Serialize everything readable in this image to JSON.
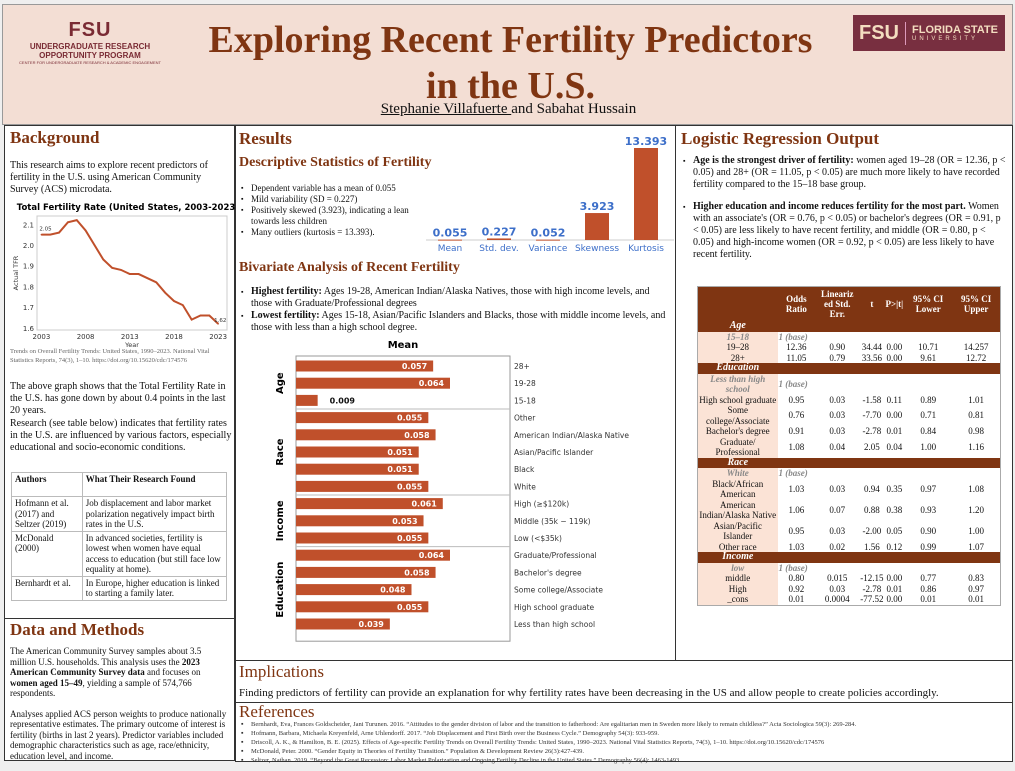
{
  "header": {
    "title_line1": "Exploring Recent Fertility Predictors",
    "title_line2": "in the U.S.",
    "author1": "Stephanie Villafuerte ",
    "author_rest": "and Sabahat Hussain",
    "logo_left": {
      "fsu": "FSU",
      "line1": "UNDERGRADUATE RESEARCH",
      "line2": "OPPORTUNITY PROGRAM",
      "line3": "CENTER FOR UNDERGRADUATE RESEARCH & ACADEMIC ENGAGEMENT"
    },
    "logo_right": {
      "fsu": "FSU",
      "name": "FLORIDA STATE",
      "sub": "UNIVERSITY"
    }
  },
  "colors": {
    "brand": "#7f3512",
    "bar": "#c0502b",
    "header_bg": "#f3ded4",
    "value_label": "#3d6fc9"
  },
  "background": {
    "heading": "Background",
    "intro": "This research aims to explore recent predictors of fertility in the U.S. using American Community Survey (ACS) microdata.",
    "source": "Trends on Overall Fertility Trends: United States, 1990–2023. National Vital Statistics Reports, 74(3), 1–10. https://doi.org/10.15620/cdc/174576",
    "para1": "The above graph shows that the Total Fertility Rate in the U.S. has gone down by about 0.4 points in the last 20 years.",
    "para2": "Research (see table below) indicates that fertility rates in the U.S.  are influenced by various factors, especially educational and socio-economic conditions.",
    "table": {
      "headers": [
        "Authors",
        "What Their Research Found"
      ],
      "rows": [
        [
          "Hofmann et al. (2017) and Seltzer (2019)",
          "Job displacement and labor market polarization negatively impact birth rates in the U.S."
        ],
        [
          "McDonald (2000)",
          "In advanced societies, fertility is lowest when women have equal access to education (but still face low equality at home)."
        ],
        [
          "Bernhardt et al.",
          "In Europe, higher education is linked to starting a family later."
        ]
      ]
    }
  },
  "methods": {
    "heading": "Data and Methods",
    "p1a": "The American Community Survey samples about 3.5 million U.S. households. This analysis uses the ",
    "p1b": "2023 American Community Survey data",
    "p1c": " and focuses on ",
    "p1d": "women aged 15–49",
    "p1e": ", yielding a sample of 574,766 respondents.",
    "p2": "Analyses applied ACS person weights to produce nationally representative estimates. The primary outcome of interest is fertility (births in last 2 years). Predictor variables included demographic characteristics such as age, race/ethnicity, education level, and income."
  },
  "results": {
    "heading": "Results",
    "desc_heading": "Descriptive Statistics of Fertility",
    "desc_bullets": [
      "Dependent variable has a mean of 0.055",
      "Mild variability (SD = 0.227)",
      "Positively skewed (3.923), indicating a lean towards less children",
      "Many outliers (kurtosis = 13.393)."
    ],
    "biv_heading": "Bivariate Analysis of Recent Fertility",
    "biv_bullets": [
      {
        "bold": "Highest fertility:",
        "text": " Ages 19-28, American Indian/Alaska Natives, those with high income levels, and those with Graduate/Professional degrees"
      },
      {
        "bold": "Lowest fertility:",
        "text": " Ages 15-18, Asian/Pacific Islanders and Blacks, those with middle income levels, and those with less than a high school degree."
      }
    ]
  },
  "chart_data": [
    {
      "type": "line",
      "title": "Total Fertility Rate (United States, 2003-2023)",
      "xlabel": "Year",
      "ylabel": "Actual TFR",
      "x": [
        2003,
        2004,
        2005,
        2006,
        2007,
        2008,
        2009,
        2010,
        2011,
        2012,
        2013,
        2014,
        2015,
        2016,
        2017,
        2018,
        2019,
        2020,
        2021,
        2022,
        2023
      ],
      "y": [
        2.05,
        2.05,
        2.06,
        2.11,
        2.12,
        2.07,
        2.0,
        1.93,
        1.89,
        1.88,
        1.86,
        1.86,
        1.84,
        1.82,
        1.77,
        1.73,
        1.71,
        1.64,
        1.66,
        1.66,
        1.62
      ],
      "xticks": [
        2003,
        2008,
        2013,
        2018,
        2023
      ],
      "yticks": [
        1.6,
        1.7,
        1.8,
        1.9,
        2.0,
        2.1
      ],
      "ylim": [
        1.59,
        2.14
      ],
      "xlim": [
        2002.5,
        2024
      ],
      "annotations": [
        "2.05",
        "1.62"
      ],
      "grid": false
    },
    {
      "type": "bar",
      "title": "",
      "categories": [
        "Mean",
        "Std. dev.",
        "Variance",
        "Skewness",
        "Kurtosis"
      ],
      "values": [
        0.055,
        0.227,
        0.052,
        3.923,
        13.393
      ],
      "labels": [
        "0.055",
        "0.227",
        "0.052",
        "3.923",
        "13.393"
      ],
      "ylim": [
        0,
        13.393
      ]
    },
    {
      "type": "bar",
      "orientation": "horizontal",
      "title": "Mean",
      "xlim": [
        0,
        0.09
      ],
      "groups": [
        {
          "name": "Age",
          "categories": [
            "28+",
            "19-28",
            "15-18"
          ],
          "values": [
            0.057,
            0.064,
            0.009
          ]
        },
        {
          "name": "Race",
          "categories": [
            "Other",
            "American Indian/Alaska Native",
            "Asian/Pacific Islander",
            "Black",
            "White"
          ],
          "values": [
            0.055,
            0.058,
            0.051,
            0.051,
            0.055
          ]
        },
        {
          "name": "Income",
          "categories": [
            "High (≥$120k)",
            "Middle (35k − 119k)",
            "Low (<$35k)"
          ],
          "values": [
            0.061,
            0.053,
            0.055
          ]
        },
        {
          "name": "Education",
          "categories": [
            "Graduate/Professional",
            "Bachelor's degree",
            "Some college/Associate",
            "High school graduate",
            "Less than high school"
          ],
          "values": [
            0.064,
            0.058,
            0.048,
            0.055,
            0.039
          ]
        }
      ]
    }
  ],
  "regression": {
    "heading": "Logistic Regression Output",
    "bullets": [
      {
        "bold": "Age is the strongest driver of fertility:",
        "text": " women aged 19–28 (OR = 12.36, p < 0.05) and 28+ (OR = 11.05, p < 0.05) are much more likely to have recorded fertility compared to the 15–18 base group."
      },
      {
        "bold": "Higher education and income reduces fertility for the most part.",
        "text": " Women with an associate's (OR = 0.76, p < 0.05) or bachelor's degrees (OR = 0.91, p < 0.05) are less likely to have recent fertility, and middle (OR = 0.80, p < 0.05) and high-income women (OR = 0.92, p < 0.05) are less likely to have recent fertility."
      }
    ],
    "table": {
      "headers": [
        "",
        "Odds Ratio",
        "Lineariz ed Std. Err.",
        "t",
        "P>|t|",
        "95% CI Lower",
        "95% CI Upper"
      ],
      "sections": [
        {
          "name": "Age",
          "base": "15–18",
          "base_label": "1 (base)",
          "rows": [
            [
              "19–28",
              "12.36",
              "0.90",
              "34.44",
              "0.00",
              "10.71",
              "14.257"
            ],
            [
              "28+",
              "11.05",
              "0.79",
              "33.56",
              "0.00",
              "9.61",
              "12.72"
            ]
          ]
        },
        {
          "name": "Education",
          "base": "Less than high school",
          "base_label": "1 (base)",
          "rows": [
            [
              "High school graduate",
              "0.95",
              "0.03",
              "-1.58",
              "0.11",
              "0.89",
              "1.01"
            ],
            [
              "Some college/Associate",
              "0.76",
              "0.03",
              "-7.70",
              "0.00",
              "0.71",
              "0.81"
            ],
            [
              "Bachelor's degree",
              "0.91",
              "0.03",
              "-2.78",
              "0.01",
              "0.84",
              "0.98"
            ],
            [
              "Graduate/ Professional",
              "1.08",
              "0.04",
              "2.05",
              "0.04",
              "1.00",
              "1.16"
            ]
          ]
        },
        {
          "name": "Race",
          "base": "White",
          "base_label": "1 (base)",
          "rows": [
            [
              "Black/African American",
              "1.03",
              "0.03",
              "0.94",
              "0.35",
              "0.97",
              "1.08"
            ],
            [
              "American Indian/Alaska Native",
              "1.06",
              "0.07",
              "0.88",
              "0.38",
              "0.93",
              "1.20"
            ],
            [
              "Asian/Pacific Islander",
              "0.95",
              "0.03",
              "-2.00",
              "0.05",
              "0.90",
              "1.00"
            ],
            [
              "Other race",
              "1.03",
              "0.02",
              "1.56",
              "0.12",
              "0.99",
              "1.07"
            ]
          ]
        },
        {
          "name": "Income",
          "base": "low",
          "base_label": "1 (base)",
          "rows": [
            [
              "middle",
              "0.80",
              "0.015",
              "-12.15",
              "0.00",
              "0.77",
              "0.83"
            ],
            [
              "High",
              "0.92",
              "0.03",
              "-2.78",
              "0.01",
              "0.86",
              "0.97"
            ],
            [
              "_cons",
              "0.01",
              "0.0004",
              "-77.52",
              "0.00",
              "0.01",
              "0.01"
            ]
          ]
        }
      ]
    }
  },
  "implications": {
    "heading": "Implications",
    "text": "Finding predictors of fertility can provide an explanation for why fertility rates have been decreasing in the US and allow people to create policies accordingly."
  },
  "references": {
    "heading": "References",
    "items": [
      "Bernhardt, Eva, Frances Goldscheider, Jani Turunen. 2016. “Attitudes to the gender division of labor and the transition to fatherhood: Are egalitarian men in Sweden more likely to remain childless?” Acta Sociologica  59(3): 269-284.",
      "Hofmann, Barbara, Michaela Kreyenfeld, Arne Uhlendorff. 2017. “Job Displacement and First Birth over the Business Cycle.” Demography 54(3): 933-959.",
      "Driscoll, A. K., & Hamilton, B. E. (2025). Effects of Age-specific Fertility Trends on Overall Fertility Trends: United States, 1990–2023. National Vital Statistics Reports, 74(3), 1–10. https://doi.org/10.15620/cdc/174576",
      "McDonald, Peter. 2000. “Gender Equity in Theories of Fertility Transition.” Population & Development Review 26(3):427-439.",
      "Seltzer, Nathan. 2019. “Beyond the Great Recession: Labor Market Polarization and Ongoing Fertility Decline in the United States.” Demography 56(4): 1463-1493."
    ]
  }
}
